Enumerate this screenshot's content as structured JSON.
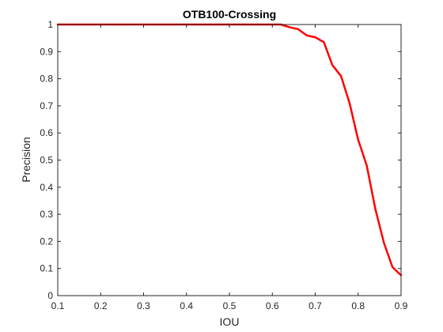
{
  "chart_data": {
    "type": "line",
    "title": "OTB100-Crossing",
    "xlabel": "IOU",
    "ylabel": "Precision",
    "xlim": [
      0.1,
      0.9
    ],
    "ylim": [
      0,
      1
    ],
    "xticks": [
      "0.1",
      "0.2",
      "0.3",
      "0.4",
      "0.5",
      "0.6",
      "0.7",
      "0.8",
      "0.9"
    ],
    "yticks": [
      "0",
      "0.1",
      "0.2",
      "0.3",
      "0.4",
      "0.5",
      "0.6",
      "0.7",
      "0.8",
      "0.9",
      "1"
    ],
    "grid": false,
    "series": [
      {
        "color": "#ff0000",
        "x": [
          0.1,
          0.12,
          0.14,
          0.16,
          0.18,
          0.2,
          0.22,
          0.24,
          0.26,
          0.28,
          0.3,
          0.32,
          0.34,
          0.36,
          0.38,
          0.4,
          0.42,
          0.44,
          0.46,
          0.48,
          0.5,
          0.52,
          0.54,
          0.56,
          0.58,
          0.6,
          0.62,
          0.64,
          0.66,
          0.68,
          0.7,
          0.72,
          0.74,
          0.76,
          0.78,
          0.8,
          0.82,
          0.84,
          0.86,
          0.88,
          0.9
        ],
        "y": [
          1,
          1,
          1,
          1,
          1,
          1,
          1,
          1,
          1,
          1,
          1,
          1,
          1,
          1,
          1,
          1,
          1,
          1,
          1,
          1,
          1,
          1,
          1,
          1,
          1,
          1,
          1,
          0.99,
          0.983,
          0.96,
          0.953,
          0.935,
          0.85,
          0.81,
          0.71,
          0.575,
          0.48,
          0.32,
          0.195,
          0.105,
          0.075
        ]
      }
    ]
  }
}
